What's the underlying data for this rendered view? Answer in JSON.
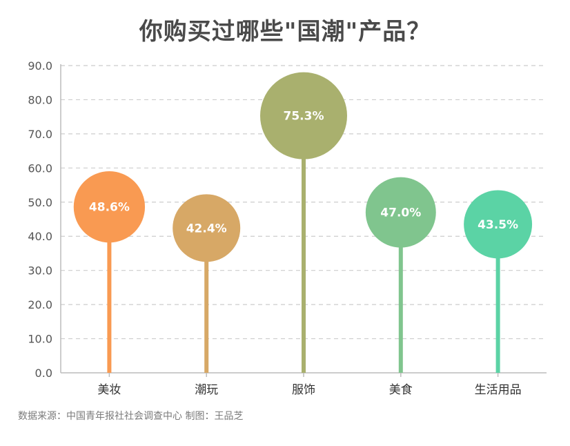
{
  "chart_data": {
    "type": "lollipop",
    "title": "你购买过哪些\"国潮\"产品？",
    "categories": [
      "美妆",
      "潮玩",
      "服饰",
      "美食",
      "生活用品"
    ],
    "values": [
      48.6,
      42.4,
      75.3,
      47.0,
      43.5
    ],
    "value_labels": [
      "48.6%",
      "42.4%",
      "75.3%",
      "47.0%",
      "43.5%"
    ],
    "colors": [
      "#f99a52",
      "#d7a866",
      "#a9b06e",
      "#80c58e",
      "#5bd3a5"
    ],
    "ylim": [
      0,
      90
    ],
    "y_ticks": [
      "0.0",
      "10.0",
      "20.0",
      "30.0",
      "40.0",
      "50.0",
      "60.0",
      "70.0",
      "80.0",
      "90.0"
    ],
    "grid": true,
    "xlabel": "",
    "ylabel": ""
  },
  "footer": {
    "source": "数据来源：中国青年报社社会调查中心 制图：王品芝"
  }
}
